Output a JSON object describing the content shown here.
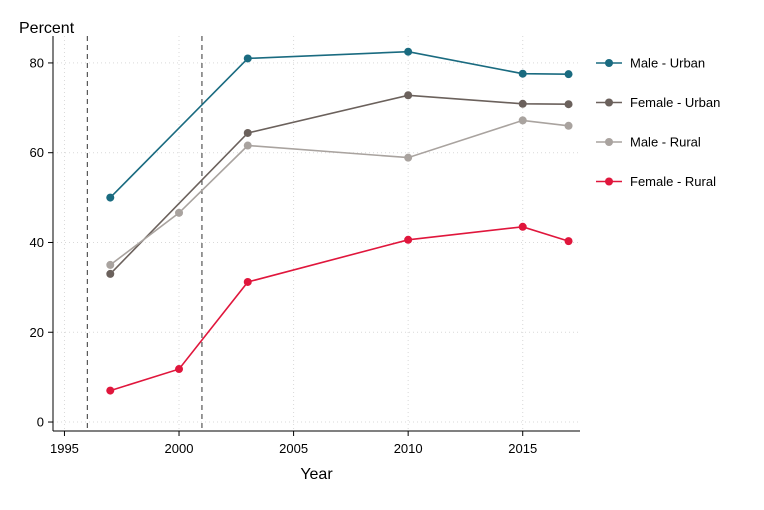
{
  "chart_data": {
    "type": "line",
    "title": "",
    "xlabel": "Year",
    "ylabel": "Percent",
    "xlim": [
      1994.5,
      2017.5
    ],
    "ylim": [
      -2,
      86
    ],
    "x_ticks": [
      1995,
      2000,
      2005,
      2010,
      2015
    ],
    "y_ticks": [
      0,
      20,
      40,
      60,
      80
    ],
    "grid": true,
    "legend_position": "right",
    "reference_lines_x": [
      1996,
      2001
    ],
    "series": [
      {
        "name": "Male - Urban",
        "color": "#1a6b80",
        "x": [
          1997,
          2003,
          2010,
          2015,
          2017
        ],
        "y": [
          50,
          81,
          82.5,
          77.6,
          77.5
        ]
      },
      {
        "name": "Female - Urban",
        "color": "#6b615c",
        "x": [
          1997,
          2003,
          2010,
          2015,
          2017
        ],
        "y": [
          33,
          64.4,
          72.8,
          70.9,
          70.8
        ]
      },
      {
        "name": "Male - Rural",
        "color": "#a9a39f",
        "x": [
          1997,
          2000,
          2003,
          2010,
          2015,
          2017
        ],
        "y": [
          35,
          46.6,
          61.6,
          58.9,
          67.2,
          66
        ]
      },
      {
        "name": "Female - Rural",
        "color": "#e0163c",
        "x": [
          1997,
          2000,
          2003,
          2010,
          2015,
          2017
        ],
        "y": [
          7,
          11.8,
          31.2,
          40.6,
          43.5,
          40.3
        ]
      }
    ]
  }
}
